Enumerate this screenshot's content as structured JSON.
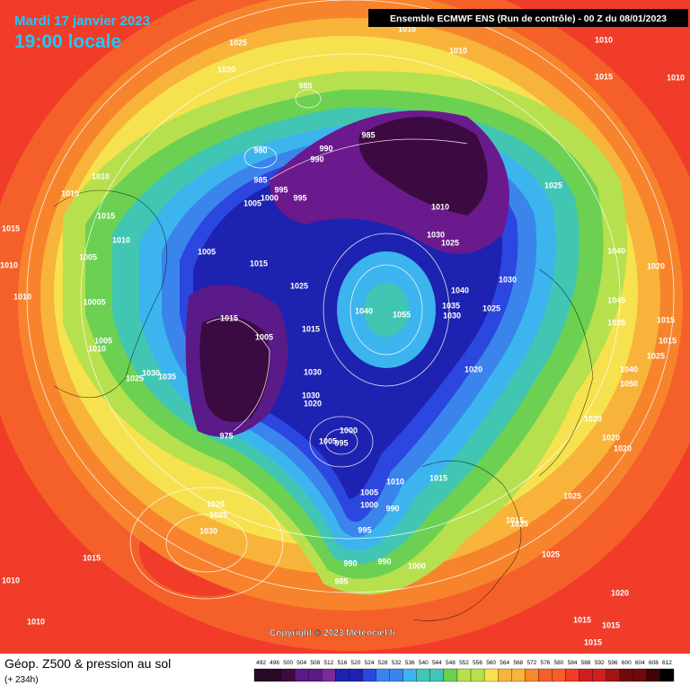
{
  "header": {
    "date": "Mardi 17 janvier 2023",
    "time": "19:00 locale",
    "model": "Ensemble ECMWF ENS  (Run de contrôle)  -  00 Z du 08/01/2023"
  },
  "copyright": "Copyright © 2023 Meteociel.fr",
  "footer": {
    "title": "Géop. Z500 & pression au sol",
    "lead": "(+ 234h)"
  },
  "scale": [
    492,
    496,
    500,
    504,
    508,
    512,
    516,
    520,
    524,
    528,
    532,
    536,
    540,
    544,
    548,
    552,
    556,
    560,
    564,
    568,
    572,
    576,
    580,
    584,
    588,
    592,
    596,
    600,
    604,
    608,
    612
  ],
  "isobar_labels": [
    1010,
    1025,
    1020,
    1010,
    1010,
    1015,
    985,
    985,
    990,
    990,
    980,
    985,
    995,
    1000,
    995,
    1005,
    1010,
    1010,
    1015,
    1010,
    1005,
    1015,
    1010,
    1010,
    10005,
    1005,
    1010,
    1030,
    1025,
    1035,
    1015,
    1005,
    1015,
    1025,
    1015,
    1005,
    1040,
    1055,
    1030,
    1035,
    1040,
    1025,
    1030,
    1020,
    1030,
    1030,
    1020,
    1000,
    1005,
    995,
    975,
    1010,
    1015,
    1005,
    1000,
    990,
    995,
    990,
    990,
    1000,
    985,
    1025,
    1010,
    1025,
    1030,
    1040,
    1045,
    1035,
    1015,
    1015,
    1025,
    1040,
    1050,
    1020,
    1020,
    1020,
    1025,
    1015,
    1025,
    1025,
    1020,
    1025,
    1030,
    1015,
    1010,
    1010,
    1020,
    1015,
    1015,
    1015,
    1010,
    1020
  ]
}
